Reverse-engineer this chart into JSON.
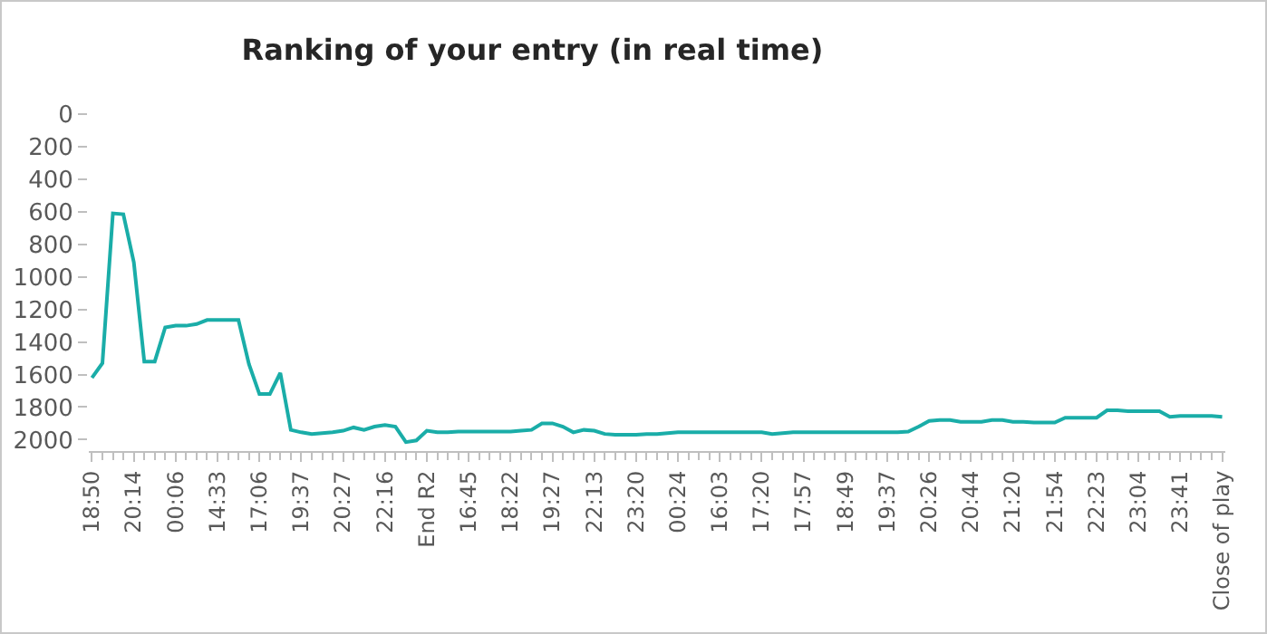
{
  "chart_data": {
    "type": "line",
    "title": "Ranking of your entry (in real time)",
    "categories": [
      "18:50",
      null,
      null,
      null,
      "20:14",
      null,
      null,
      null,
      "00:06",
      null,
      null,
      null,
      "14:33",
      null,
      null,
      null,
      "17:06",
      null,
      null,
      null,
      "19:37",
      null,
      null,
      null,
      "20:27",
      null,
      null,
      null,
      "22:16",
      null,
      null,
      null,
      "End R2",
      null,
      null,
      null,
      "16:45",
      null,
      null,
      null,
      "18:22",
      null,
      null,
      null,
      "19:27",
      null,
      null,
      null,
      "22:13",
      null,
      null,
      null,
      "23:20",
      null,
      null,
      null,
      "00:24",
      null,
      null,
      null,
      "16:03",
      null,
      null,
      null,
      "17:20",
      null,
      null,
      null,
      "17:57",
      null,
      null,
      null,
      "18:49",
      null,
      null,
      null,
      "19:37",
      null,
      null,
      null,
      "20:26",
      null,
      null,
      null,
      "20:44",
      null,
      null,
      null,
      "21:20",
      null,
      null,
      null,
      "21:54",
      null,
      null,
      null,
      "22:23",
      null,
      null,
      null,
      "23:04",
      null,
      null,
      null,
      "23:41",
      null,
      null,
      null,
      "Close of play"
    ],
    "series": [
      {
        "color": "#1aada8",
        "values": [
          1620,
          1530,
          610,
          615,
          910,
          1520,
          1520,
          1310,
          1300,
          1300,
          1290,
          1265,
          1265,
          1265,
          1265,
          1535,
          1720,
          1720,
          1590,
          1940,
          1955,
          1965,
          1960,
          1955,
          1945,
          1925,
          1940,
          1920,
          1910,
          1920,
          2015,
          2005,
          1945,
          1955,
          1955,
          1950,
          1950,
          1950,
          1950,
          1950,
          1950,
          1945,
          1940,
          1900,
          1900,
          1920,
          1955,
          1940,
          1945,
          1965,
          1970,
          1970,
          1970,
          1965,
          1965,
          1960,
          1955,
          1955,
          1955,
          1955,
          1955,
          1955,
          1955,
          1955,
          1955,
          1965,
          1960,
          1955,
          1955,
          1955,
          1955,
          1955,
          1955,
          1955,
          1955,
          1955,
          1955,
          1955,
          1950,
          1920,
          1885,
          1880,
          1880,
          1890,
          1890,
          1890,
          1880,
          1880,
          1890,
          1890,
          1895,
          1895,
          1895,
          1865,
          1865,
          1865,
          1865,
          1820,
          1820,
          1825,
          1825,
          1825,
          1825,
          1860,
          1855,
          1855,
          1855,
          1855,
          1860
        ]
      }
    ],
    "ylim": [
      2070,
      0
    ],
    "yticks": [
      0,
      200,
      400,
      600,
      800,
      1000,
      1200,
      1400,
      1600,
      1800,
      2000
    ],
    "marker": "none",
    "line_style": "solid"
  }
}
